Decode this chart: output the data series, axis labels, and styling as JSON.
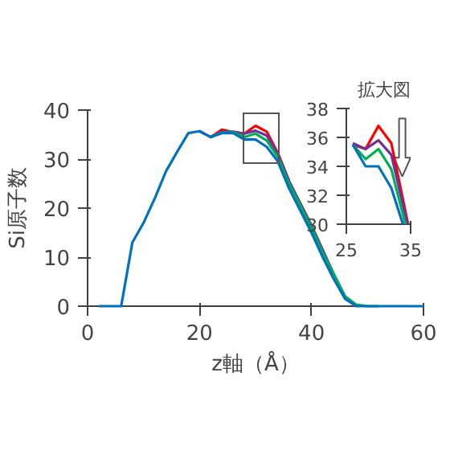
{
  "chart_data": [
    {
      "type": "line",
      "xlabel": "z軸（Å）",
      "ylabel": "Si原子数",
      "x": [
        2,
        4,
        6,
        8,
        10,
        12,
        14,
        16,
        18,
        20,
        22,
        24,
        26,
        28,
        30,
        32,
        34,
        36,
        38,
        40,
        42,
        44,
        46,
        48,
        50,
        52,
        54,
        56,
        58,
        60
      ],
      "xlim": [
        0,
        60
      ],
      "xticks": [
        0,
        20,
        40,
        60
      ],
      "ylim": [
        0,
        40
      ],
      "yticks": [
        0,
        10,
        20,
        30,
        40
      ],
      "series": [
        {
          "color": "#ff0000",
          "values": [
            null,
            null,
            null,
            null,
            null,
            null,
            null,
            null,
            null,
            null,
            34.5,
            36,
            35.5,
            35.2,
            36.8,
            35.6,
            31.2,
            25.5,
            null,
            null,
            null,
            null,
            null,
            null,
            null,
            null,
            null,
            null,
            null,
            null
          ]
        },
        {
          "color": "#7030a0",
          "values": [
            null,
            null,
            null,
            null,
            null,
            null,
            null,
            null,
            null,
            35.7,
            34.5,
            35.6,
            35.6,
            35.2,
            35.8,
            34.8,
            31,
            25.5,
            21,
            16.5,
            11.5,
            6.5,
            1.8,
            0,
            null,
            null,
            null,
            null,
            null,
            null
          ]
        },
        {
          "color": "#00b050",
          "values": [
            null,
            null,
            null,
            null,
            null,
            null,
            null,
            null,
            null,
            null,
            34.5,
            35.4,
            35.5,
            34.5,
            35.2,
            33.8,
            30.4,
            25,
            20.5,
            16,
            11,
            6.5,
            2,
            0.3,
            0,
            0,
            null,
            null,
            null,
            null
          ]
        },
        {
          "color": "#0070c0",
          "values": [
            0,
            0,
            0,
            13,
            17,
            22,
            27.5,
            31.5,
            35.3,
            35.7,
            34.5,
            35.3,
            35.3,
            34,
            34,
            32.5,
            29.5,
            24,
            19.5,
            15,
            10,
            5.5,
            1.5,
            0,
            0,
            0,
            0,
            0,
            0,
            0
          ]
        }
      ]
    },
    {
      "type": "line",
      "title": "拡大図",
      "xlim": [
        25,
        35
      ],
      "xticks": [
        25,
        35
      ],
      "ylim": [
        30,
        38
      ],
      "yticks": [
        30,
        32,
        34,
        36,
        38
      ],
      "series": [
        {
          "color": "#ff0000",
          "x": [
            26,
            28,
            30,
            32,
            34.6
          ],
          "values": [
            35.5,
            35.2,
            36.8,
            35.6,
            30
          ]
        },
        {
          "color": "#7030a0",
          "x": [
            26,
            28,
            30,
            32,
            34.5
          ],
          "values": [
            35.6,
            35.2,
            35.8,
            34.8,
            30
          ]
        },
        {
          "color": "#00b050",
          "x": [
            26,
            28,
            30,
            32,
            34.2
          ],
          "values": [
            35.5,
            34.5,
            35.2,
            33.8,
            30
          ]
        },
        {
          "color": "#0070c0",
          "x": [
            26,
            28,
            30,
            32,
            33.8
          ],
          "values": [
            35.5,
            34,
            34,
            32.5,
            30
          ]
        }
      ]
    }
  ]
}
